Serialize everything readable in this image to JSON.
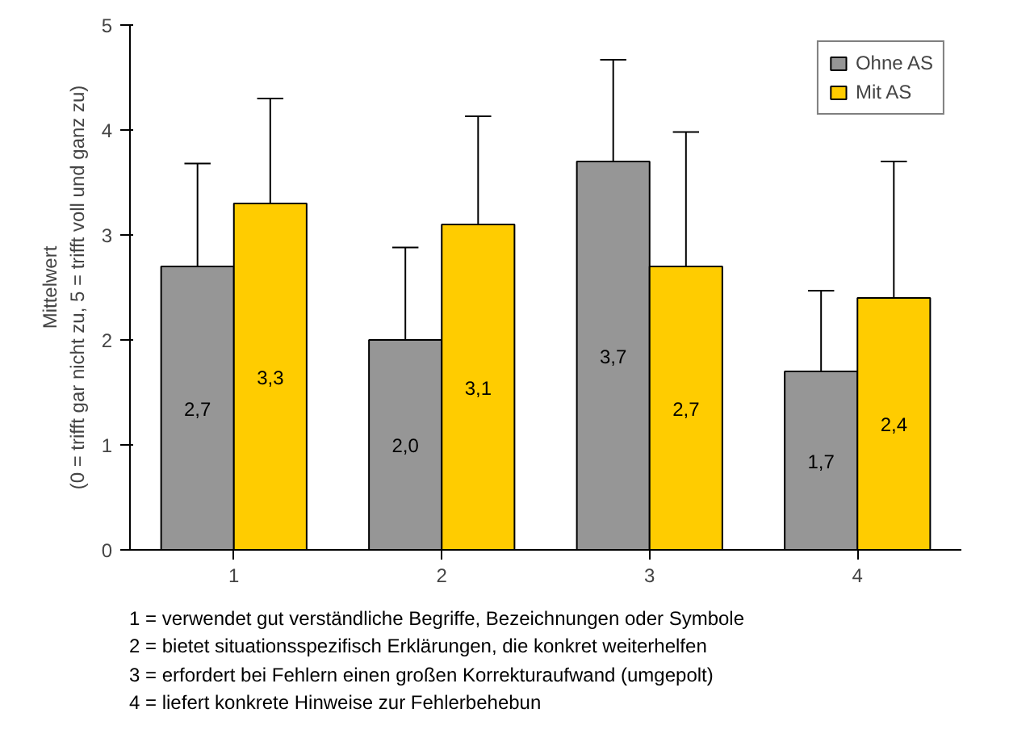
{
  "chart_data": {
    "type": "bar",
    "ylabel": "Mittelwert\n(0 = trifft gar nicht zu, 5 = trifft voll und ganz zu)",
    "categories": [
      "1",
      "2",
      "3",
      "4"
    ],
    "series": [
      {
        "name": "Ohne AS",
        "color": "#969696",
        "values": [
          2.7,
          2.0,
          3.7,
          1.7
        ],
        "value_labels": [
          "2,7",
          "2,0",
          "3,7",
          "1,7"
        ],
        "errors": [
          [
            2.7,
            3.68
          ],
          [
            2.0,
            2.88
          ],
          [
            3.7,
            4.67
          ],
          [
            1.7,
            2.47
          ]
        ]
      },
      {
        "name": "Mit AS",
        "color": "#ffcc00",
        "values": [
          3.3,
          3.1,
          2.7,
          2.4
        ],
        "value_labels": [
          "3,3",
          "3,1",
          "2,7",
          "2,4"
        ],
        "errors": [
          [
            3.3,
            4.3
          ],
          [
            3.1,
            4.13
          ],
          [
            2.7,
            3.98
          ],
          [
            2.4,
            3.7
          ]
        ]
      }
    ],
    "ylim": [
      0,
      5
    ],
    "yticks": [
      0,
      1,
      2,
      3,
      4,
      5
    ],
    "grid": false,
    "legend": "top right",
    "annotations": [
      "1 = verwendet gut verständliche Begriffe, Bezeichnungen oder Symbole",
      "2 = bietet situationsspezifisch Erklärungen, die konkret weiterhelfen",
      "3 = erfordert bei Fehlern einen großen Korrekturaufwand (umgepolt)",
      "4 = liefert konkrete Hinweise zur Fehlerbehebun"
    ]
  }
}
